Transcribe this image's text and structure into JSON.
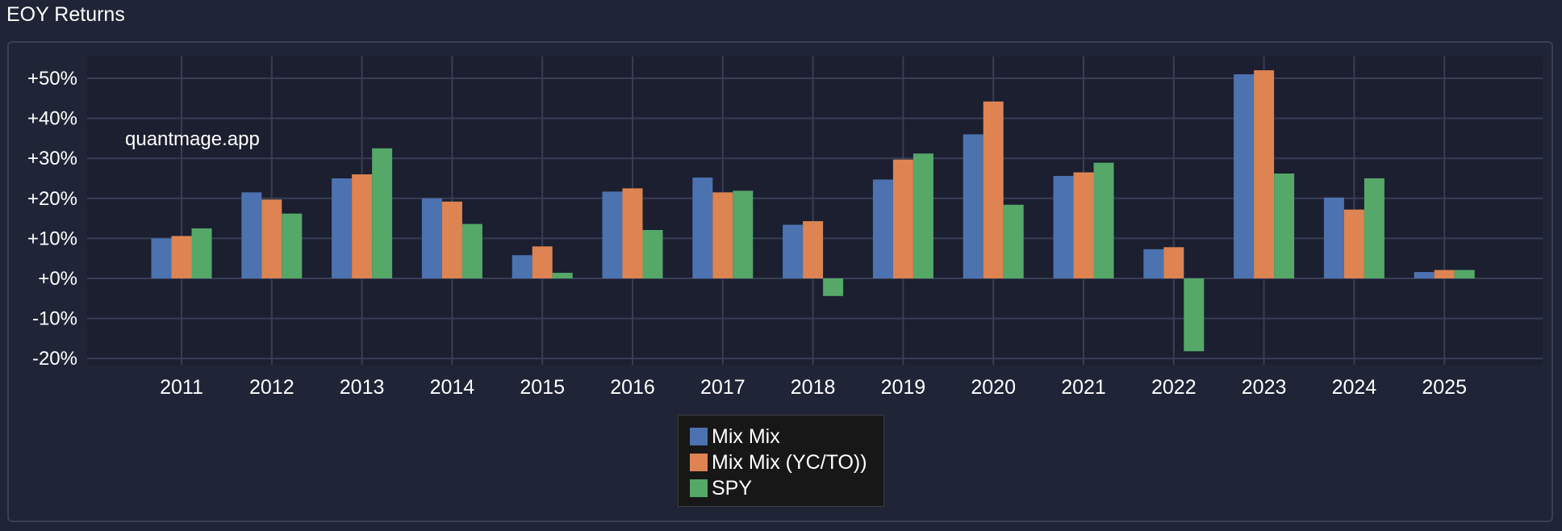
{
  "panel": {
    "title": "EOY Returns"
  },
  "watermark": "quantmage.app",
  "colors": {
    "background": "#1f2436",
    "plot_bg": "#1b1f30",
    "grid": "#3a3e55",
    "Mix Mix": "#4c72b0",
    "Mix Mix (YC/TO))": "#dd8452",
    "SPY": "#55a868"
  },
  "chart_data": {
    "type": "bar",
    "title": "EOY Returns",
    "xlabel": "",
    "ylabel": "",
    "categories": [
      "2011",
      "2012",
      "2013",
      "2014",
      "2015",
      "2016",
      "2017",
      "2018",
      "2019",
      "2020",
      "2021",
      "2022",
      "2023",
      "2024",
      "2025"
    ],
    "series": [
      {
        "name": "Mix Mix",
        "values": [
          10,
          21.5,
          25,
          20,
          5.8,
          21.7,
          25.2,
          13.4,
          24.7,
          36,
          25.6,
          7.3,
          51,
          20.2,
          1.6
        ]
      },
      {
        "name": "Mix Mix (YC/TO))",
        "values": [
          10.6,
          19.7,
          26,
          19.2,
          8,
          22.5,
          21.5,
          14.3,
          29.7,
          44.2,
          26.5,
          7.8,
          52,
          17.2,
          2.1
        ]
      },
      {
        "name": "SPY",
        "values": [
          12.5,
          16.2,
          32.5,
          13.6,
          1.4,
          12.1,
          21.9,
          -4.4,
          31.2,
          18.4,
          28.9,
          -18.2,
          26.2,
          25,
          2.1
        ]
      }
    ],
    "ylim": [
      -22,
      55
    ],
    "yticks": [
      -20,
      -10,
      0,
      10,
      20,
      30,
      40,
      50
    ],
    "ytick_labels": [
      "-20%",
      "-10%",
      "+0%",
      "+10%",
      "+20%",
      "+30%",
      "+40%",
      "+50%"
    ],
    "legend": [
      "Mix Mix",
      "Mix Mix (YC/TO))",
      "SPY"
    ],
    "grid": true,
    "legend_position": "bottom-center"
  }
}
